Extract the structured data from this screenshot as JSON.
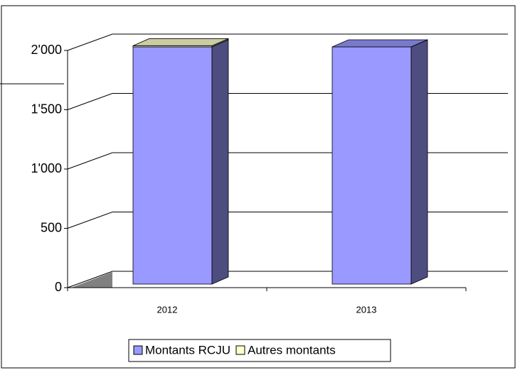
{
  "chart_data": {
    "type": "bar3d_stacked",
    "categories": [
      "2012",
      "2013"
    ],
    "series": [
      {
        "name": "Montants RCJU",
        "color": "#9999ff",
        "values": [
          2000,
          2000
        ]
      },
      {
        "name": "Autres montants",
        "color": "#ffffcc",
        "values": [
          10,
          0
        ]
      }
    ],
    "ylim": [
      0,
      2000
    ],
    "yticks": [
      0,
      500,
      {
        "value": 1000,
        "label": "1'000"
      },
      {
        "value": 1500,
        "label": "1'500"
      },
      {
        "value": 2000,
        "label": "2'000"
      }
    ],
    "grid": true,
    "legend": "bottom"
  }
}
